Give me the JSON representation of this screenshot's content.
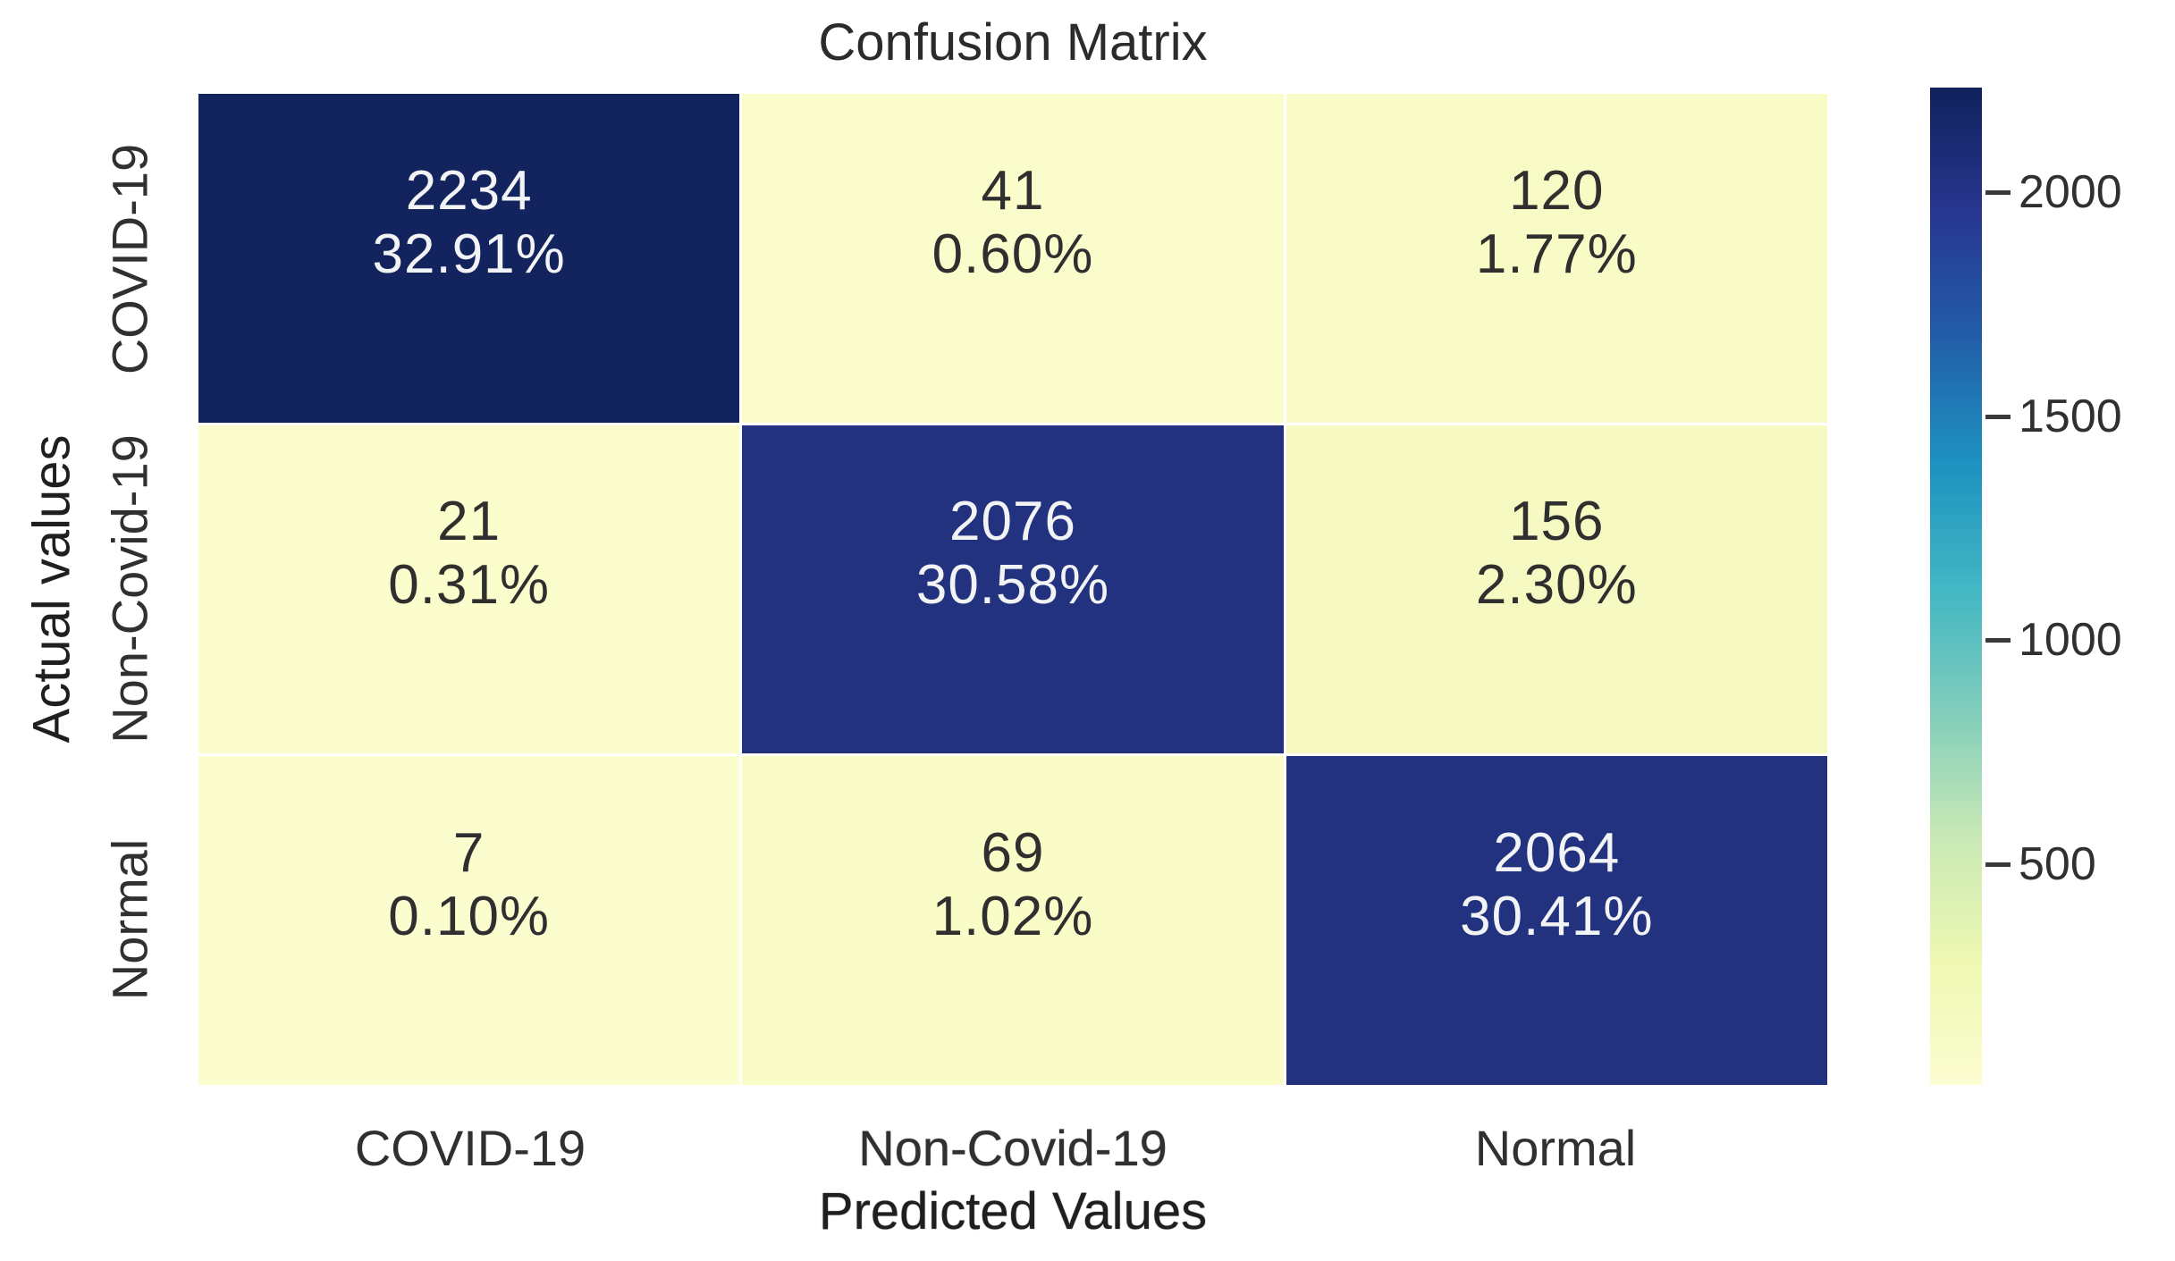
{
  "figure": {
    "background": "#ffffff",
    "text_color": "#303030"
  },
  "chart_data": {
    "type": "heatmap",
    "title": "Confusion Matrix",
    "xlabel": "Predicted Values",
    "ylabel": "Actual values",
    "x_categories": [
      "COVID-19",
      "Non-Covid-19",
      "Normal"
    ],
    "y_categories": [
      "COVID-19",
      "Non-Covid-19",
      "Normal"
    ],
    "matrix": [
      [
        2234,
        41,
        120
      ],
      [
        21,
        2076,
        156
      ],
      [
        7,
        69,
        2064
      ]
    ],
    "percent_matrix": [
      [
        "32.91%",
        "0.60%",
        "1.77%"
      ],
      [
        "0.31%",
        "30.58%",
        "2.30%"
      ],
      [
        "0.10%",
        "1.02%",
        "30.41%"
      ]
    ],
    "colormap": "YlGnBu",
    "vmin": 7,
    "vmax": 2234,
    "legend_position": "right",
    "grid": false,
    "colorbar_ticks": [
      "2000",
      "1500",
      "1000",
      "500"
    ],
    "colorbar_tick_values": [
      2000,
      1500,
      1000,
      500
    ],
    "colorbar_gradient": [
      {
        "pos": 0.0,
        "color": "#fcfdd1"
      },
      {
        "pos": 0.125,
        "color": "#eef8b2"
      },
      {
        "pos": 0.25,
        "color": "#c8e9b5"
      },
      {
        "pos": 0.375,
        "color": "#80cdbb"
      },
      {
        "pos": 0.5,
        "color": "#41b6c4"
      },
      {
        "pos": 0.625,
        "color": "#1d91c0"
      },
      {
        "pos": 0.75,
        "color": "#225ea8"
      },
      {
        "pos": 0.875,
        "color": "#27368f"
      },
      {
        "pos": 1.0,
        "color": "#11215c"
      }
    ],
    "cells": [
      {
        "count": "2234",
        "pct": "32.91%",
        "bg": "#13235e",
        "fg": "#f2f3f5"
      },
      {
        "count": "41",
        "pct": "0.60%",
        "bg": "#fbfccb",
        "fg": "#2f2f2f"
      },
      {
        "count": "120",
        "pct": "1.77%",
        "bg": "#f8fbc5",
        "fg": "#2f2f2f"
      },
      {
        "count": "21",
        "pct": "0.31%",
        "bg": "#fbfdcd",
        "fg": "#2f2f2f"
      },
      {
        "count": "2076",
        "pct": "30.58%",
        "bg": "#22327f",
        "fg": "#f2f3f5"
      },
      {
        "count": "156",
        "pct": "2.30%",
        "bg": "#f6fac2",
        "fg": "#2f2f2f"
      },
      {
        "count": "7",
        "pct": "0.10%",
        "bg": "#fcfdcf",
        "fg": "#2f2f2f"
      },
      {
        "count": "69",
        "pct": "1.02%",
        "bg": "#fafcc8",
        "fg": "#2f2f2f"
      },
      {
        "count": "2064",
        "pct": "30.41%",
        "bg": "#22327e",
        "fg": "#f2f3f5"
      }
    ]
  }
}
